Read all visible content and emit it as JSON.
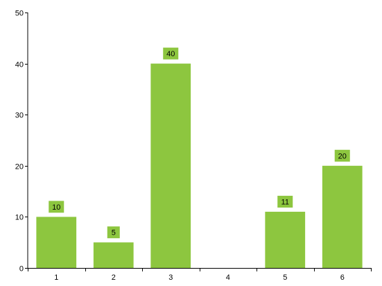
{
  "chart_data": {
    "type": "bar",
    "categories": [
      "1",
      "2",
      "3",
      "4",
      "5",
      "6"
    ],
    "values": [
      10,
      5,
      40,
      0,
      11,
      20
    ],
    "data_labels": [
      "10",
      "5",
      "40",
      "",
      "11",
      "20"
    ],
    "y_ticks": [
      "0",
      "10",
      "20",
      "30",
      "40",
      "50"
    ],
    "ylim": [
      0,
      50
    ],
    "grid": false,
    "legend": "none",
    "bar_color": "#8DC63F",
    "label_bg_color": "#8DC63F",
    "axis_color": "#000000"
  }
}
